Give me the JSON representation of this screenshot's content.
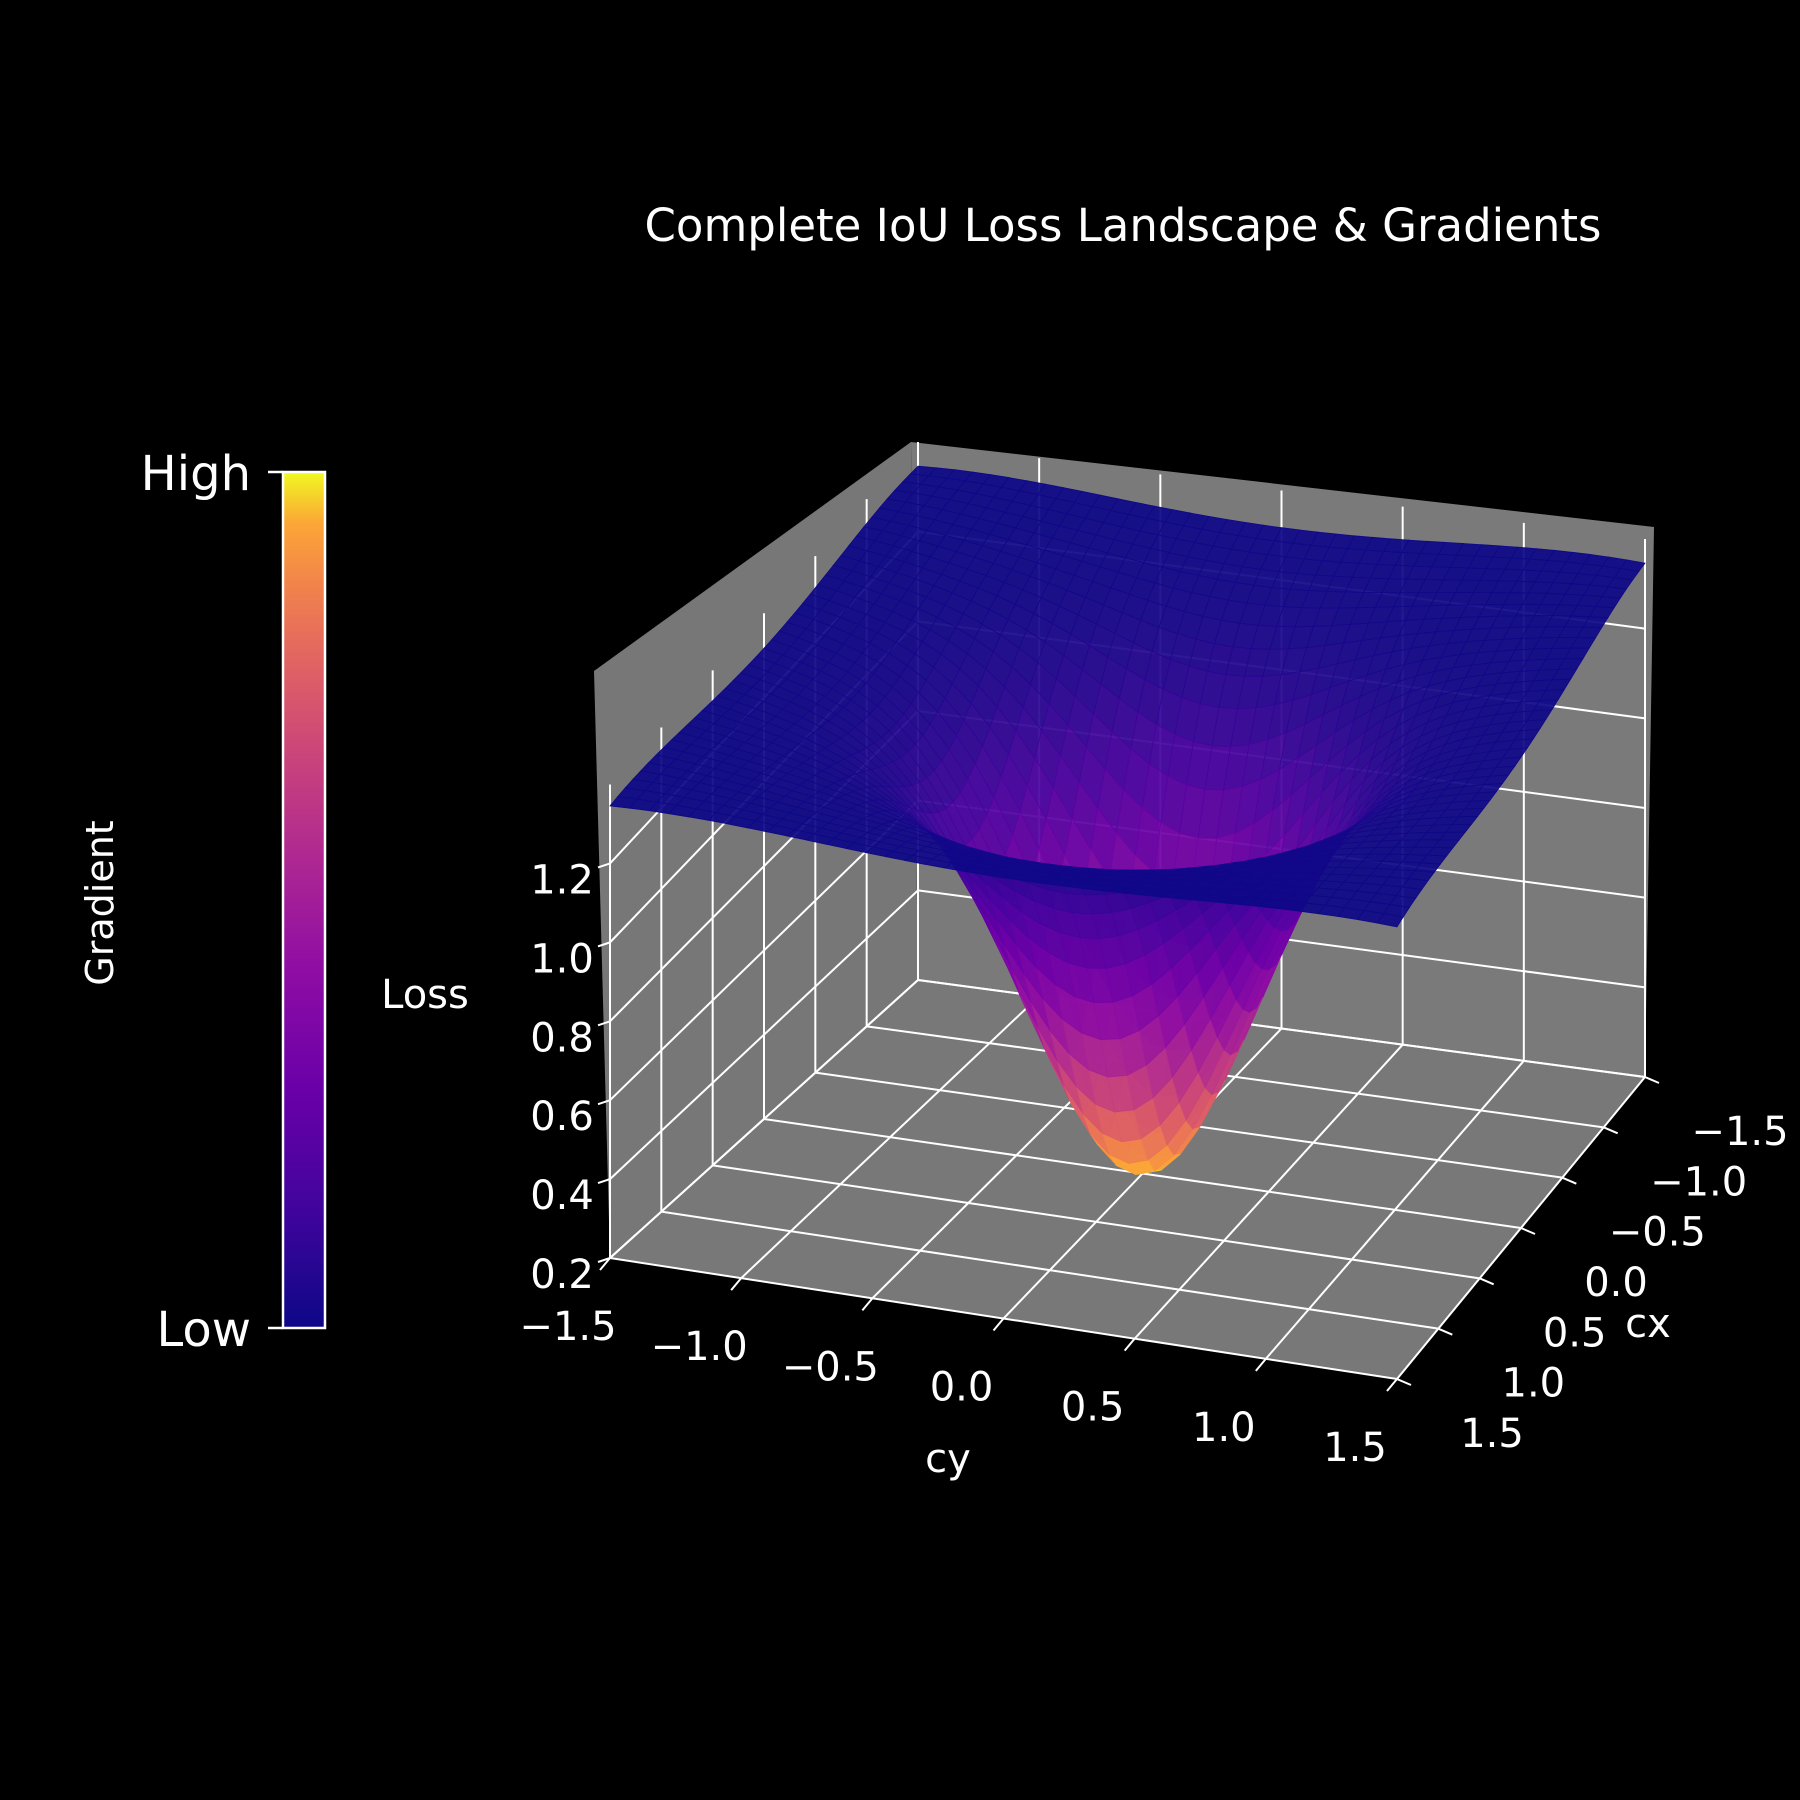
{
  "chart_data": {
    "type": "surface3d",
    "title": "Complete IoU Loss Landscape & Gradients",
    "xlabel": "cy",
    "ylabel": "cx",
    "zlabel": "Loss",
    "x_range": [
      -1.5,
      1.5
    ],
    "y_range": [
      -1.5,
      1.5
    ],
    "z_range": [
      0.2,
      1.3
    ],
    "x_ticks": [
      "−1.5",
      "−1.0",
      "−0.5",
      "0.0",
      "0.5",
      "1.0",
      "1.5"
    ],
    "y_ticks": [
      "−1.5",
      "−1.0",
      "−0.5",
      "0.0",
      "0.5",
      "1.0",
      "1.5"
    ],
    "z_ticks": [
      "0.2",
      "0.4",
      "0.6",
      "0.8",
      "1.0",
      "1.2"
    ],
    "surface": {
      "description_of_values": "loss minimum 0.2 at (0,0), rising steeply to plateau near 1.3-1.35 at edges",
      "min_point": {
        "cx": 0.0,
        "cy": 0.0,
        "loss": 0.2
      },
      "edge_loss": 1.35
    },
    "colorbar": {
      "label": "Gradient",
      "high_label": "High",
      "low_label": "Low",
      "colormap": "plasma"
    },
    "grid": true,
    "pane_color": "#787878",
    "background": "#000000"
  }
}
